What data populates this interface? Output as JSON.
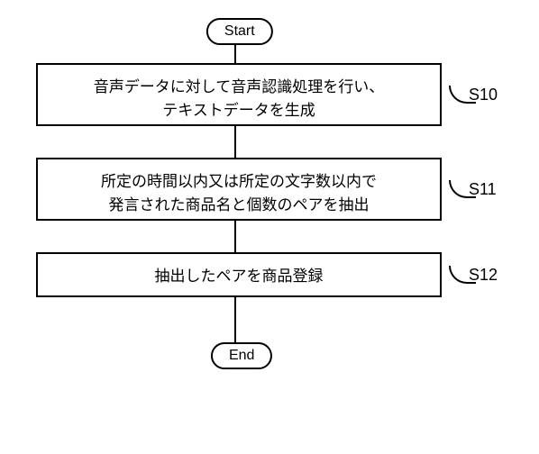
{
  "flowchart": {
    "type": "flowchart",
    "background_color": "#ffffff",
    "border_color": "#000000",
    "text_color": "#000000",
    "border_width": 2,
    "font_size_process": 17,
    "font_size_label": 18,
    "font_size_terminator": 16,
    "terminators": {
      "start": {
        "label": "Start"
      },
      "end": {
        "label": "End"
      }
    },
    "steps": [
      {
        "id": "S10",
        "label": "S10",
        "text_line1": "音声データに対して音声認識処理を行い、",
        "text_line2": "テキストデータを生成"
      },
      {
        "id": "S11",
        "label": "S11",
        "text_line1": "所定の時間以内又は所定の文字数以内で",
        "text_line2": "発言された商品名と個数のペアを抽出"
      },
      {
        "id": "S12",
        "label": "S12",
        "text_line1": "抽出したペアを商品登録"
      }
    ],
    "edges": [
      {
        "from": "start",
        "to": "S10"
      },
      {
        "from": "S10",
        "to": "S11"
      },
      {
        "from": "S11",
        "to": "S12"
      },
      {
        "from": "S12",
        "to": "end"
      }
    ]
  }
}
